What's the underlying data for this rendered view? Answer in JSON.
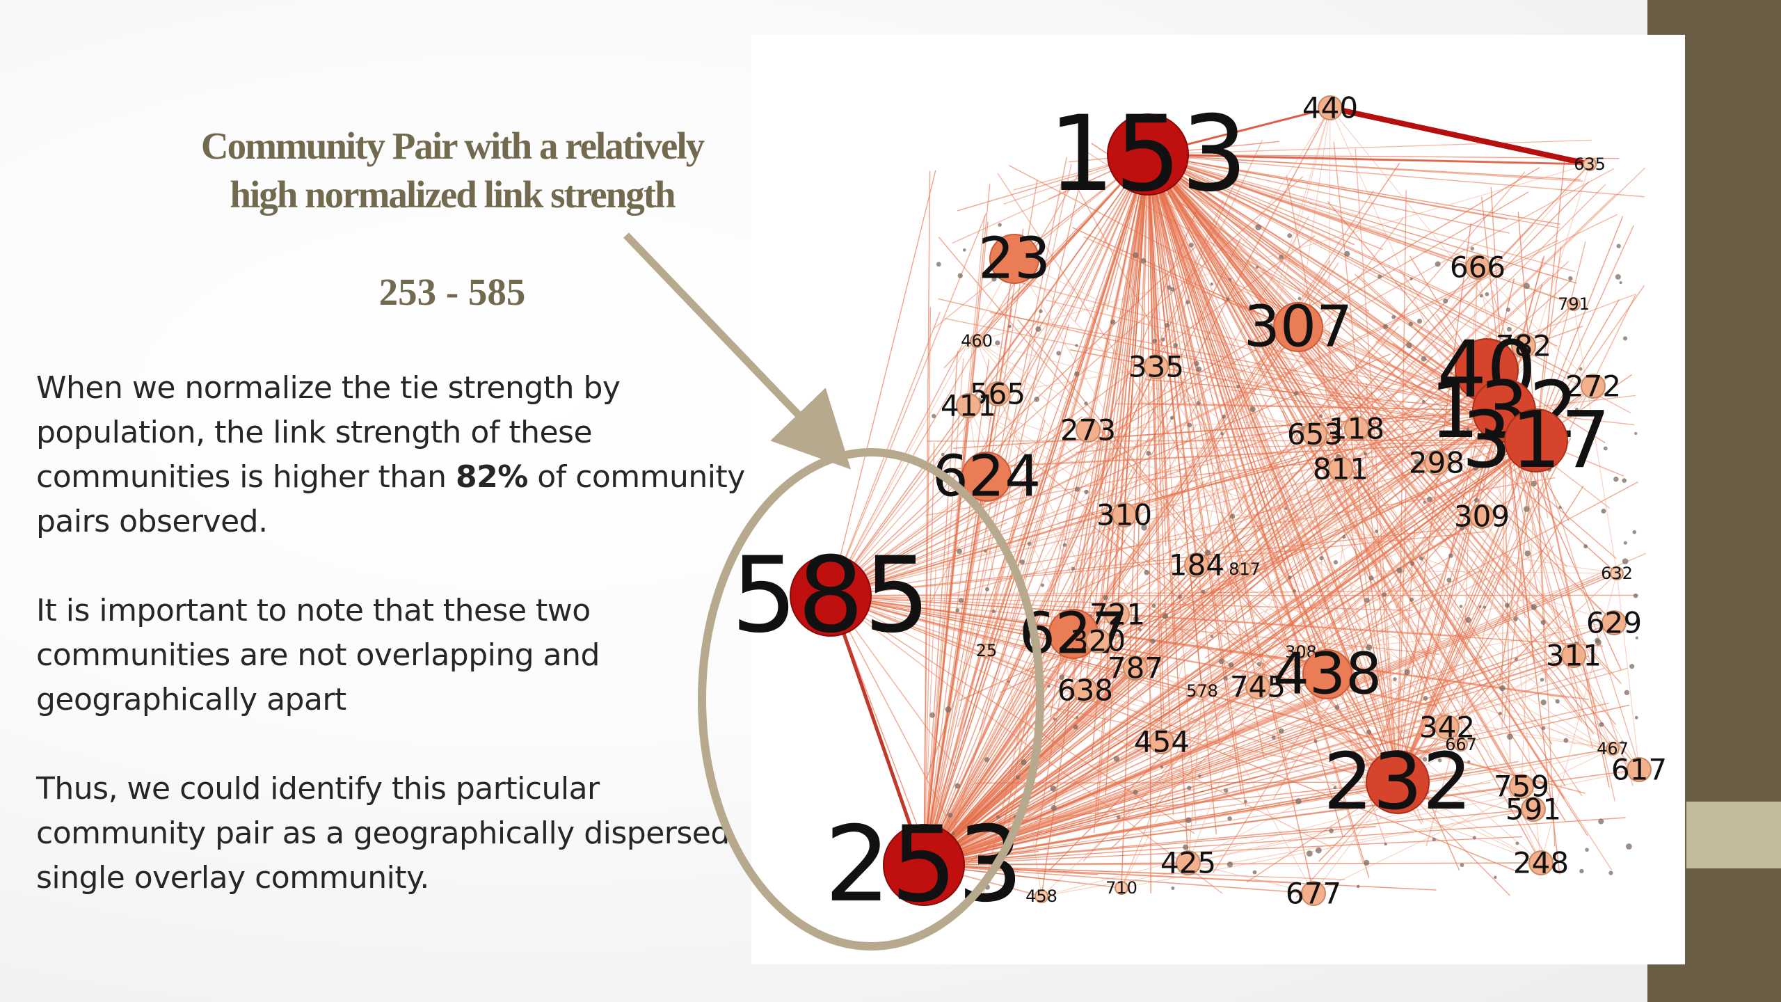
{
  "slide": {
    "title_line1": "Community Pair with a relatively",
    "title_line2": "high normalized link strength",
    "pair": "253 - 585",
    "p1_before": "When we normalize the tie strength by population, the link strength of these communities is higher than ",
    "p1_bold": "82%",
    "p1_after": " of community pairs observed.",
    "p2": "It is important to note that these two communities are not overlapping and geographically apart",
    "p3": "Thus, we could identify this particular community pair as a geographically dispersed single overlay community."
  },
  "colors": {
    "accent_text": "#726a4f",
    "side_bar": "#6a5d45",
    "side_accent": "#c2bc9a",
    "highlight_ring": "#b6a98d",
    "hub_node": "#c00f0f",
    "mid_node": "#e0583a",
    "edge": "#e8744f"
  },
  "network": {
    "highlighted_pair": [
      "585",
      "253"
    ],
    "nodes": [
      {
        "label": "153",
        "tier": "hub"
      },
      {
        "label": "440",
        "tier": "small"
      },
      {
        "label": "635",
        "tier": "tiny"
      },
      {
        "label": "23",
        "tier": "medium"
      },
      {
        "label": "666",
        "tier": "small"
      },
      {
        "label": "307",
        "tier": "medium"
      },
      {
        "label": "791",
        "tier": "tiny"
      },
      {
        "label": "460",
        "tier": "tiny"
      },
      {
        "label": "335",
        "tier": "small"
      },
      {
        "label": "782",
        "tier": "small"
      },
      {
        "label": "40",
        "tier": "large"
      },
      {
        "label": "272",
        "tier": "small"
      },
      {
        "label": "565",
        "tier": "small"
      },
      {
        "label": "411",
        "tier": "small"
      },
      {
        "label": "273",
        "tier": "small"
      },
      {
        "label": "653",
        "tier": "small"
      },
      {
        "label": "118",
        "tier": "small"
      },
      {
        "label": "132",
        "tier": "large"
      },
      {
        "label": "317",
        "tier": "large"
      },
      {
        "label": "624",
        "tier": "medium"
      },
      {
        "label": "811",
        "tier": "small"
      },
      {
        "label": "298",
        "tier": "small"
      },
      {
        "label": "310",
        "tier": "small"
      },
      {
        "label": "309",
        "tier": "small"
      },
      {
        "label": "585",
        "tier": "hub"
      },
      {
        "label": "184",
        "tier": "small"
      },
      {
        "label": "817",
        "tier": "tiny"
      },
      {
        "label": "632",
        "tier": "tiny"
      },
      {
        "label": "721",
        "tier": "small"
      },
      {
        "label": "627",
        "tier": "medium"
      },
      {
        "label": "320",
        "tier": "small"
      },
      {
        "label": "629",
        "tier": "small"
      },
      {
        "label": "25",
        "tier": "tiny"
      },
      {
        "label": "787",
        "tier": "small"
      },
      {
        "label": "308",
        "tier": "tiny"
      },
      {
        "label": "438",
        "tier": "medium"
      },
      {
        "label": "311",
        "tier": "small"
      },
      {
        "label": "638",
        "tier": "small"
      },
      {
        "label": "578",
        "tier": "tiny"
      },
      {
        "label": "745",
        "tier": "small"
      },
      {
        "label": "342",
        "tier": "small"
      },
      {
        "label": "667",
        "tier": "tiny"
      },
      {
        "label": "454",
        "tier": "small"
      },
      {
        "label": "467",
        "tier": "tiny"
      },
      {
        "label": "617",
        "tier": "small"
      },
      {
        "label": "232",
        "tier": "large"
      },
      {
        "label": "759",
        "tier": "small"
      },
      {
        "label": "591",
        "tier": "small"
      },
      {
        "label": "253",
        "tier": "hub"
      },
      {
        "label": "425",
        "tier": "small"
      },
      {
        "label": "248",
        "tier": "small"
      },
      {
        "label": "458",
        "tier": "tiny"
      },
      {
        "label": "710",
        "tier": "tiny"
      },
      {
        "label": "677",
        "tier": "small"
      }
    ]
  }
}
